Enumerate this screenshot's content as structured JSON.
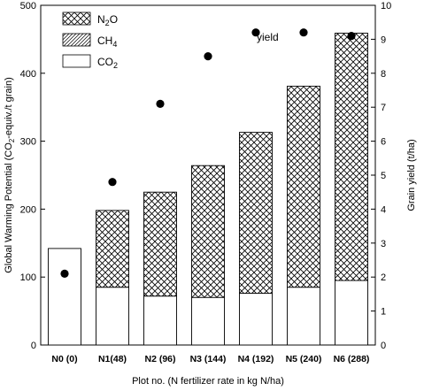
{
  "chart_data": {
    "type": "bar",
    "stacked": true,
    "categories": [
      "N0 (0)",
      "N1(48)",
      "N2 (96)",
      "N3 (144)",
      "N4 (192)",
      "N5 (240)",
      "N6 (288)"
    ],
    "series": [
      {
        "name": "CO2",
        "name_main": "CO",
        "name_sub": "2",
        "fill": "blank",
        "values": [
          142,
          85,
          72,
          70,
          76,
          85,
          95
        ]
      },
      {
        "name": "CH4",
        "name_main": "CH",
        "name_sub": "4",
        "fill": "diagonal-hatch",
        "values": [
          0,
          0,
          0,
          0,
          0,
          0,
          0
        ]
      },
      {
        "name": "N2O",
        "name_main": "N",
        "name_sub": "2",
        "name_tail": "O",
        "fill": "cross-hatch",
        "values": [
          0,
          113,
          153,
          194,
          237,
          296,
          364
        ]
      }
    ],
    "yield_series": {
      "label": "yield",
      "axis": "right",
      "values": [
        2.1,
        4.8,
        7.1,
        8.5,
        9.2,
        9.2,
        9.1
      ]
    },
    "xlabel": "Plot no. (N fertilizer rate in kg N/ha)",
    "ylabel": "Global Warming Potential (CO2-equiv./t grain)",
    "ylabel_parts": [
      "Global Warming Potential (CO",
      "2",
      "-equiv./t grain)"
    ],
    "y2label": "Grain yield (t/ha)",
    "ylim": [
      0,
      500
    ],
    "y2lim": [
      0,
      10
    ],
    "yticks": [
      0,
      100,
      200,
      300,
      400,
      500
    ],
    "y2ticks": [
      0,
      1,
      2,
      3,
      4,
      5,
      6,
      7,
      8,
      9,
      10
    ],
    "legend_position": "top-left",
    "grid": false
  }
}
